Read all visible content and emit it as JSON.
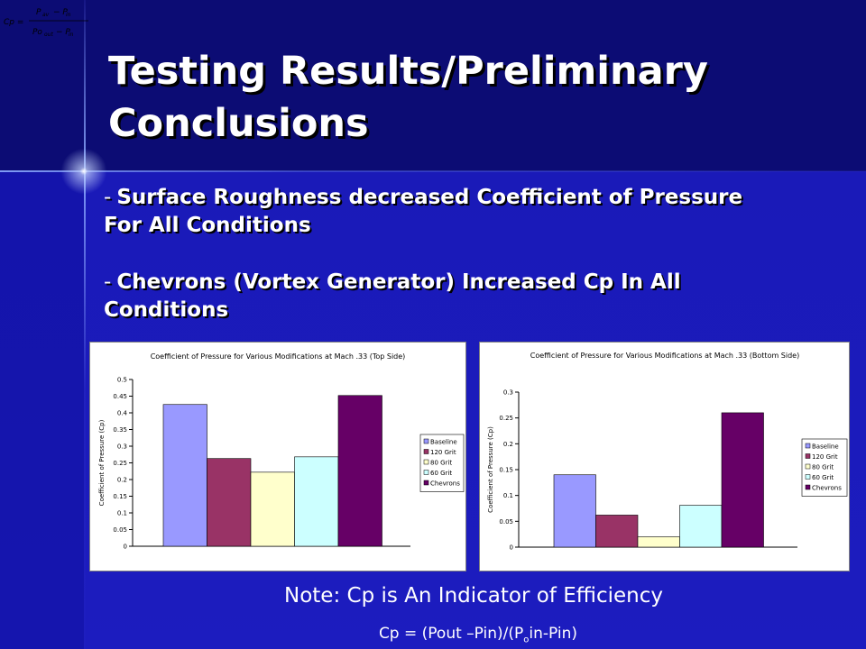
{
  "slide": {
    "title": "Testing Results/Preliminary Conclusions",
    "bullets": [
      {
        "dash": "-",
        "text": "Surface Roughness decreased Coefficient of Pressure For All Conditions"
      },
      {
        "dash": "-",
        "text": "Chevrons (Vortex Generator) Increased Cp In All Conditions"
      }
    ],
    "note": "Note: Cp is An Indicator of Efficiency",
    "formula": {
      "pre": "Cp = (Pout –Pin)/(P",
      "sub": "o",
      "post": "in-Pin)"
    },
    "corner_formula": {
      "lhs": "Cp =",
      "num_a": "P",
      "num_a_sub": "av",
      "num_minus": "− P",
      "num_b_sub": "in",
      "den_a": "Po",
      "den_a_sub": "out",
      "den_minus": "− P",
      "den_b_sub": "in"
    }
  },
  "colors": {
    "background": "#1a1ab8",
    "header": "#0c0c74",
    "text": "#ffffff"
  },
  "chart_data": [
    {
      "type": "bar",
      "title": "Coefficient of Pressure for Various Modifications at Mach .33 (Top Side)",
      "ylabel": "Coefficient of Pressure (Cp)",
      "ylim": [
        0,
        0.5
      ],
      "yticks": [
        "0",
        "0.05",
        "0.1",
        "0.15",
        "0.2",
        "0.25",
        "0.3",
        "0.35",
        "0.4",
        "0.45",
        "0.5"
      ],
      "grid": false,
      "legend_position": "right",
      "series": [
        {
          "name": "Baseline",
          "value": 0.425,
          "color": "#9999ff"
        },
        {
          "name": "120 Grit",
          "value": 0.263,
          "color": "#993366"
        },
        {
          "name": "80 Grit",
          "value": 0.222,
          "color": "#ffffcc"
        },
        {
          "name": "60 Grit",
          "value": 0.268,
          "color": "#ccffff"
        },
        {
          "name": "Chevrons",
          "value": 0.452,
          "color": "#660066"
        }
      ]
    },
    {
      "type": "bar",
      "title": "Coefficient of Pressure for Various Modifications at Mach .33 (Bottom Side)",
      "ylabel": "Coefficient of Pressure (Cp)",
      "ylim": [
        0,
        0.3
      ],
      "yticks": [
        "0",
        "0.05",
        "0.1",
        "0.15",
        "0.2",
        "0.25",
        "0.3"
      ],
      "grid": false,
      "legend_position": "right",
      "series": [
        {
          "name": "Baseline",
          "value": 0.14,
          "color": "#9999ff"
        },
        {
          "name": "120 Grit",
          "value": 0.062,
          "color": "#993366"
        },
        {
          "name": "80 Grit",
          "value": 0.02,
          "color": "#ffffcc"
        },
        {
          "name": "60 Grit",
          "value": 0.081,
          "color": "#ccffff"
        },
        {
          "name": "Chevrons",
          "value": 0.26,
          "color": "#660066"
        }
      ]
    }
  ]
}
